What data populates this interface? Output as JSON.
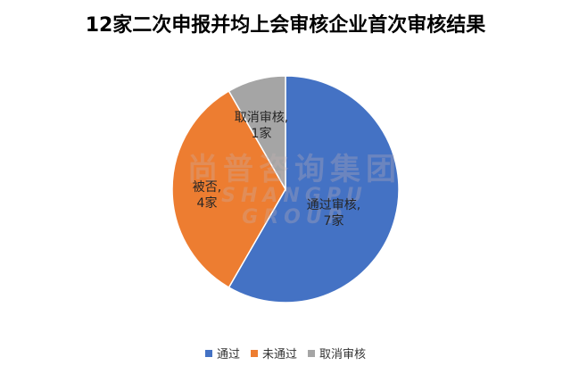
{
  "chart_data": {
    "type": "pie",
    "title": "12家二次申报并均上会审核企业首次审核结果",
    "slices": [
      {
        "name": "通过",
        "value": 7,
        "color": "#4472C4",
        "label_line1": "通过审核,",
        "label_line2": "7家"
      },
      {
        "name": "未通过",
        "value": 4,
        "color": "#ED7D31",
        "label_line1": "被否,",
        "label_line2": "4家"
      },
      {
        "name": "取消审核",
        "value": 1,
        "color": "#A5A5A5",
        "label_line1": "取消审核,",
        "label_line2": "1家"
      }
    ],
    "legend": {
      "position": "bottom",
      "entries": [
        "通过",
        "未通过",
        "取消审核"
      ]
    }
  },
  "watermark": {
    "cn": "尚普咨询集团",
    "en": "SHANGPU GROUP"
  }
}
